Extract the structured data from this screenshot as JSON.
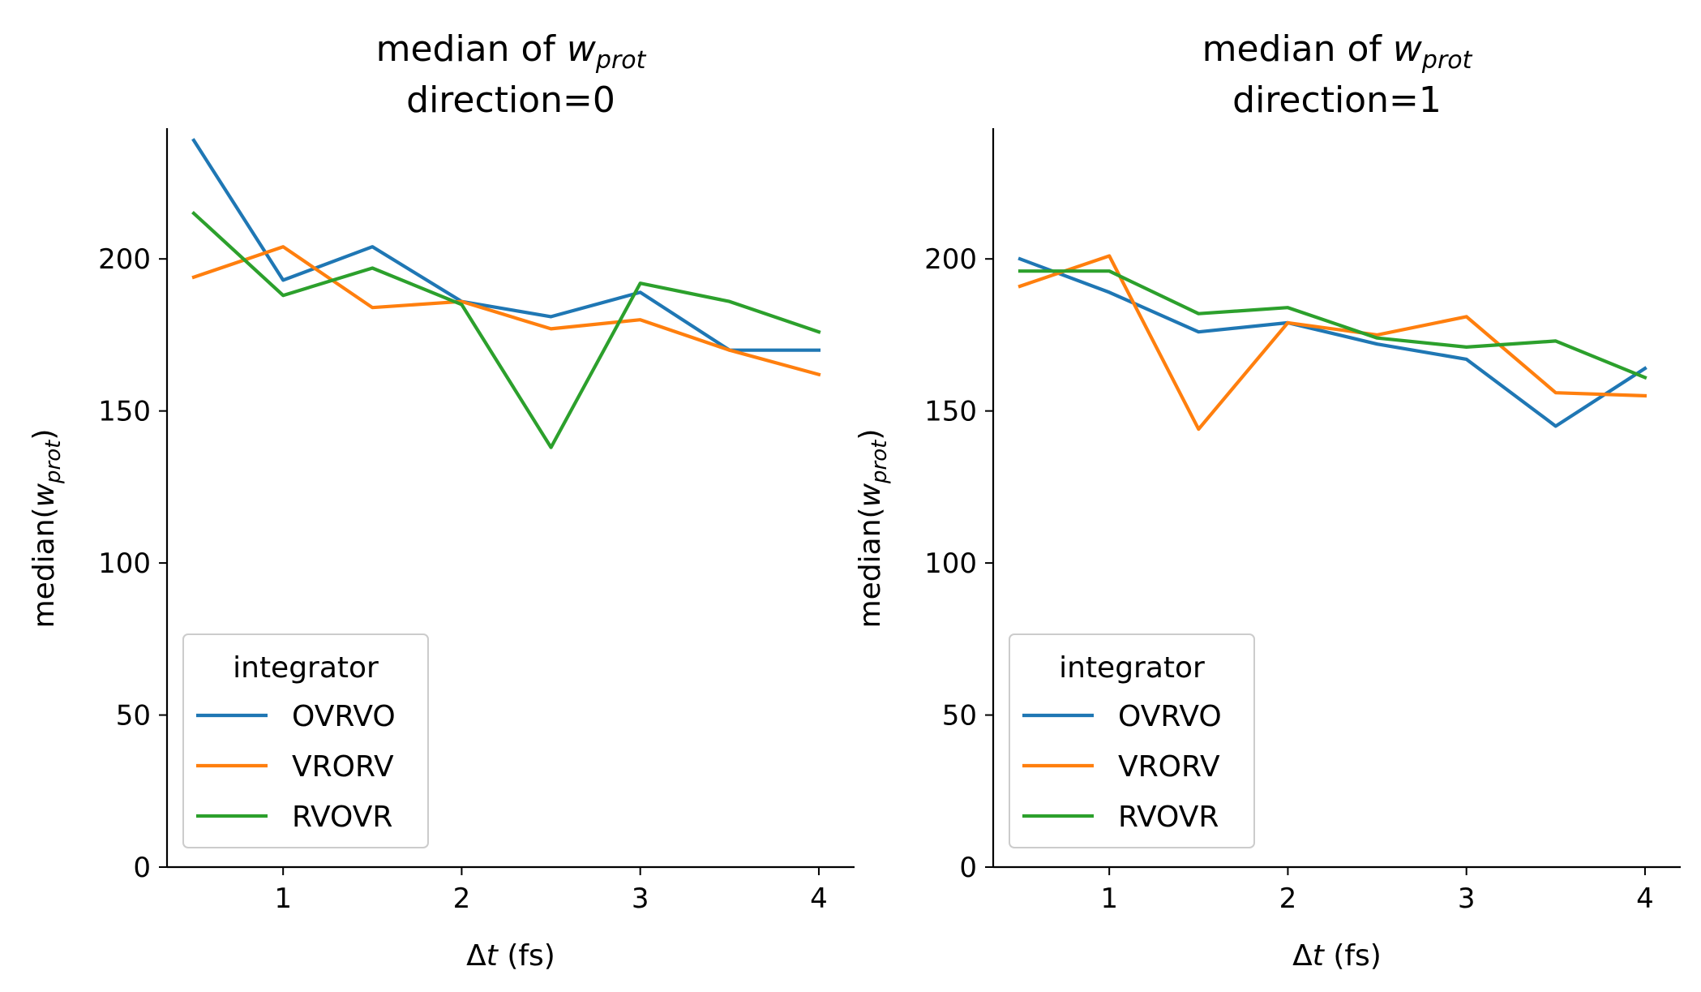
{
  "chart_data": [
    {
      "type": "line",
      "title_prefix": "median of ",
      "title_var": "w",
      "title_sub": "prot",
      "subtitle": "direction=0",
      "xlabel_delta": "Δ",
      "xlabel_var": "t",
      "xlabel_unit": " (fs)",
      "ylabel_prefix": "median(",
      "ylabel_var": "w",
      "ylabel_sub": "prot",
      "ylabel_suffix": ")",
      "xlim": [
        0.35,
        4.2
      ],
      "ylim": [
        0,
        243
      ],
      "xticks": [
        1,
        2,
        3,
        4
      ],
      "xtick_labels": [
        "1",
        "2",
        "3",
        "4"
      ],
      "yticks": [
        0,
        50,
        100,
        150,
        200
      ],
      "ytick_labels": [
        "0",
        "50",
        "100",
        "150",
        "200"
      ],
      "x": [
        0.5,
        1.0,
        1.5,
        2.0,
        2.5,
        3.0,
        3.5,
        4.0
      ],
      "legend": {
        "title": "integrator",
        "placement": "lower-left"
      },
      "series": [
        {
          "name": "OVRVO",
          "color": "#1f77b4",
          "values": [
            239,
            193,
            204,
            186,
            181,
            189,
            170,
            170
          ]
        },
        {
          "name": "VRORV",
          "color": "#ff7f0e",
          "values": [
            194,
            204,
            184,
            186,
            177,
            180,
            170,
            162
          ]
        },
        {
          "name": "RVOVR",
          "color": "#2ca02c",
          "values": [
            215,
            188,
            197,
            185,
            138,
            192,
            186,
            176
          ]
        }
      ]
    },
    {
      "type": "line",
      "title_prefix": "median of ",
      "title_var": "w",
      "title_sub": "prot",
      "subtitle": "direction=1",
      "xlabel_delta": "Δ",
      "xlabel_var": "t",
      "xlabel_unit": " (fs)",
      "ylabel_prefix": "median(",
      "ylabel_var": "w",
      "ylabel_sub": "prot",
      "ylabel_suffix": ")",
      "xlim": [
        0.35,
        4.2
      ],
      "ylim": [
        0,
        243
      ],
      "xticks": [
        1,
        2,
        3,
        4
      ],
      "xtick_labels": [
        "1",
        "2",
        "3",
        "4"
      ],
      "yticks": [
        0,
        50,
        100,
        150,
        200
      ],
      "ytick_labels": [
        "0",
        "50",
        "100",
        "150",
        "200"
      ],
      "x": [
        0.5,
        1.0,
        1.5,
        2.0,
        2.5,
        3.0,
        3.5,
        4.0
      ],
      "legend": {
        "title": "integrator",
        "placement": "lower-left"
      },
      "series": [
        {
          "name": "OVRVO",
          "color": "#1f77b4",
          "values": [
            200,
            189,
            176,
            179,
            172,
            167,
            145,
            164
          ]
        },
        {
          "name": "VRORV",
          "color": "#ff7f0e",
          "values": [
            191,
            201,
            144,
            179,
            175,
            181,
            156,
            155
          ]
        },
        {
          "name": "RVOVR",
          "color": "#2ca02c",
          "values": [
            196,
            196,
            182,
            184,
            174,
            171,
            173,
            161
          ]
        }
      ]
    }
  ]
}
